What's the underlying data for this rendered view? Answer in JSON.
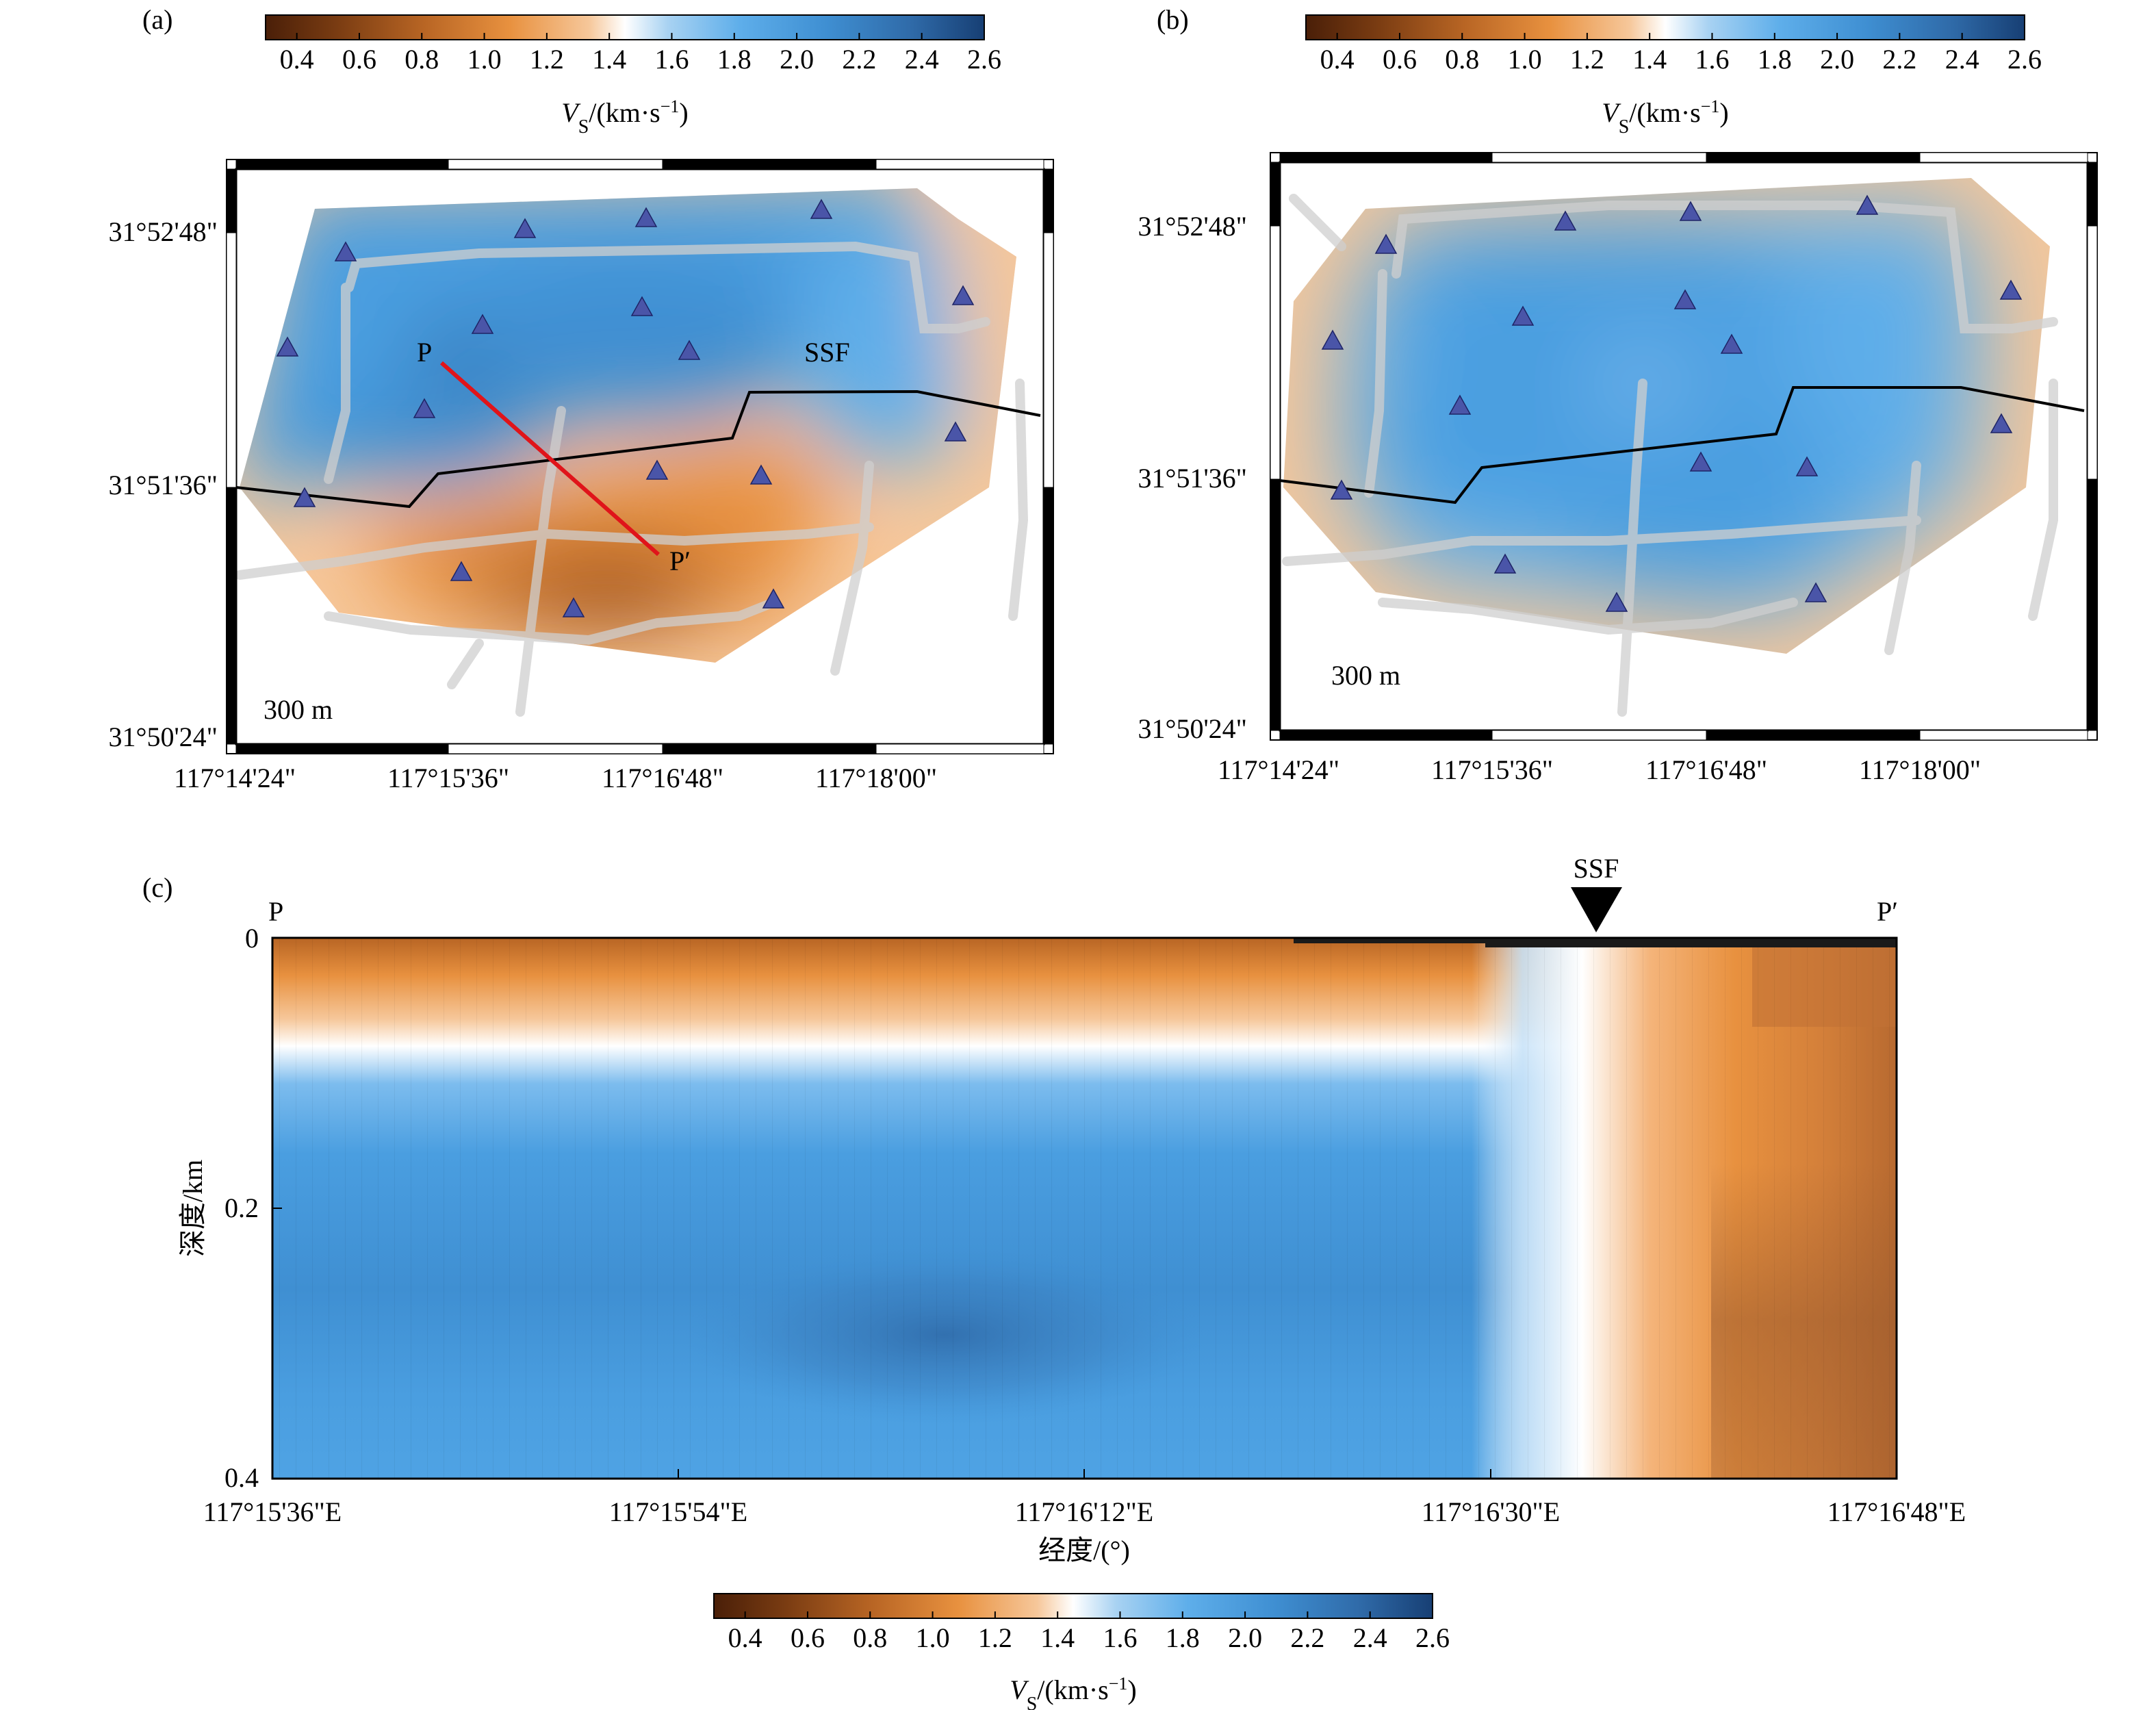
{
  "colors": {
    "scale": [
      "#4a1f08",
      "#7a3c12",
      "#b86524",
      "#e8913f",
      "#f6c79a",
      "#ffffff",
      "#a8d2f2",
      "#5eaeea",
      "#3f8fd2",
      "#2f6aa8",
      "#173f74"
    ],
    "station": "#4a55a8",
    "profile_line": "#e0141a",
    "fault": "#000000",
    "roads": "#d0d0d0"
  },
  "colorbar": {
    "ticks": [
      "0.4",
      "0.6",
      "0.8",
      "1.0",
      "1.2",
      "1.4",
      "1.6",
      "1.8",
      "2.0",
      "2.2",
      "2.4",
      "2.6"
    ],
    "label": "V",
    "label_sub": "S",
    "label_unit": "/(km·s",
    "label_sup": "−1",
    "label_close": ")"
  },
  "panel_a": {
    "letter": "(a)",
    "lat_ticks": [
      "31°52'48\"",
      "31°51'36\"",
      "31°50'24\""
    ],
    "lon_ticks": [
      "117°14'24\"",
      "117°15'36\"",
      "117°16'48\"",
      "117°18'00\""
    ],
    "fault_label": "SSF",
    "profile_start": "P",
    "profile_end": "P′",
    "scale_text": "300 m"
  },
  "panel_b": {
    "letter": "(b)",
    "lat_ticks": [
      "31°52'48\"",
      "31°51'36\"",
      "31°50'24\""
    ],
    "lon_ticks": [
      "117°14'24\"",
      "117°15'36\"",
      "117°16'48\"",
      "117°18'00\""
    ],
    "scale_text": "300 m"
  },
  "panel_c": {
    "letter": "(c)",
    "fault_label": "SSF",
    "left_label": "P",
    "right_label": "P′",
    "ylabel": "深度/km",
    "xlabel": "经度/(°)"
  },
  "chart_data": [
    {
      "type": "heatmap",
      "title": "(a)",
      "x_ticks": [
        "117°14'24\"",
        "117°15'36\"",
        "117°16'48\"",
        "117°18'00\""
      ],
      "y_ticks": [
        "31°52'48\"",
        "31°51'36\"",
        "31°50'24\""
      ],
      "colorbar_range": [
        0.3,
        2.6
      ],
      "annotations": [
        "SSF",
        "P",
        "P′",
        "300 m"
      ],
      "features": "Vs map: high velocity (about 1.8–2.2 km/s) north of fault SSF, low velocity (about 0.5–1.0 km/s) south of the fault; 17 stations; profile P–P′ crossing the fault"
    },
    {
      "type": "heatmap",
      "title": "(b)",
      "x_ticks": [
        "117°14'24\"",
        "117°15'36\"",
        "117°16'48\"",
        "117°18'00\""
      ],
      "y_ticks": [
        "31°52'48\"",
        "31°51'36\"",
        "31°50'24\""
      ],
      "colorbar_range": [
        0.3,
        2.6
      ],
      "annotations": [
        "300 m"
      ],
      "features": "Vs map at depth: mostly 1.6–1.9 km/s across the area, lower values (about 1.0–1.3 km/s) at the outer edges; 17 stations"
    },
    {
      "type": "heatmap",
      "title": "(c)",
      "xlabel": "经度/(°)",
      "ylabel": "深度/km",
      "x_ticks": [
        "117°15'36\"E",
        "117°15'54\"E",
        "117°16'12\"E",
        "117°16'30\"E",
        "117°16'48\"E"
      ],
      "y_ticks": [
        "0",
        "0.2",
        "0.4"
      ],
      "ylim": [
        0,
        0.4
      ],
      "colorbar_range": [
        0.3,
        2.6
      ],
      "annotations": [
        "P",
        "P′",
        "SSF"
      ],
      "features": "Cross-section P–P′: low-velocity layer (about 1.0 km/s) in the top ~0.07–0.10 km, high velocity (1.8–2.1 km/s) beneath; east of SSF velocities stay low (0.5–1.1 km/s) through the full depth"
    }
  ]
}
